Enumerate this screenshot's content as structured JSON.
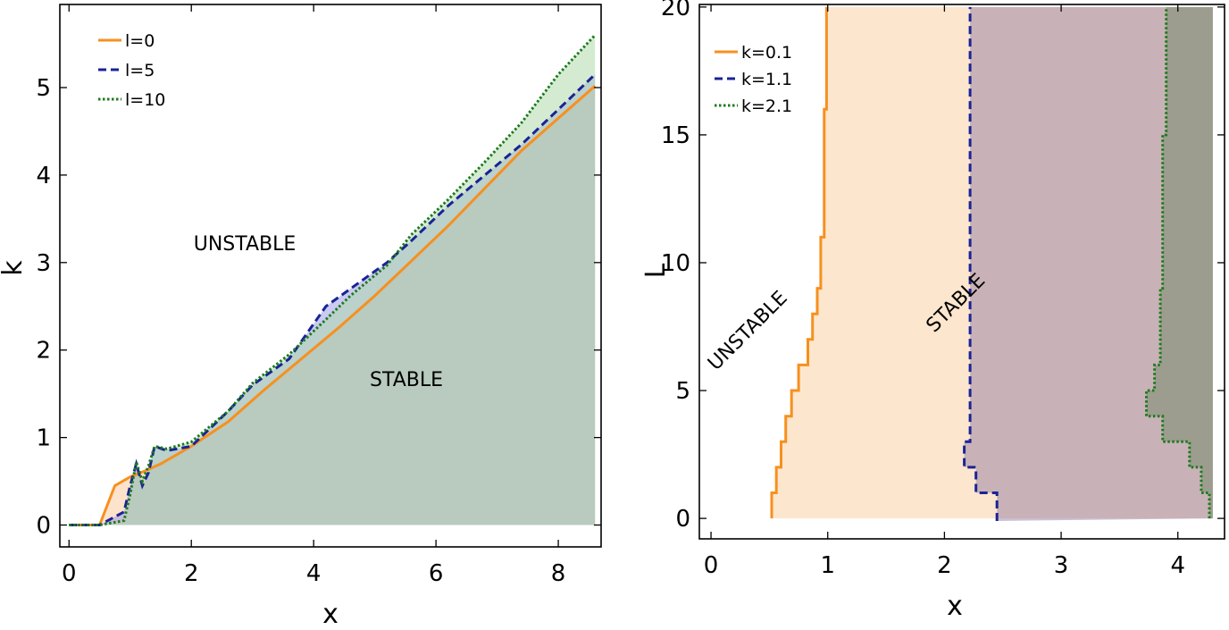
{
  "chart_data": [
    {
      "type": "area",
      "xlabel": "x",
      "ylabel": "k",
      "xlim": [
        -0.15,
        8.7
      ],
      "ylim": [
        -0.25,
        5.95
      ],
      "xticks": [
        0,
        2,
        4,
        6,
        8
      ],
      "yticks": [
        0,
        1,
        2,
        3,
        4,
        5
      ],
      "legend_position": "top-left",
      "grid": false,
      "annotations": [
        "UNSTABLE",
        "STABLE"
      ],
      "series": [
        {
          "name": "l=0",
          "color": "#f7901e",
          "fill": "rgba(252,204,160,0.55)",
          "dash": "solid",
          "x": [
            0,
            0.5,
            0.75,
            1.0,
            1.25,
            1.5,
            2.0,
            2.6,
            3.2,
            3.8,
            4.4,
            5.0,
            5.6,
            6.2,
            6.8,
            7.4,
            8.0,
            8.6
          ],
          "y": [
            0,
            0,
            0.45,
            0.55,
            0.62,
            0.7,
            0.9,
            1.18,
            1.55,
            1.9,
            2.25,
            2.62,
            3.02,
            3.42,
            3.85,
            4.28,
            4.65,
            5.02
          ]
        },
        {
          "name": "l=5",
          "color": "#1a2396",
          "fill": "rgba(150,150,230,0.5)",
          "dash": "dash",
          "x": [
            0,
            0.5,
            0.9,
            1.0,
            1.1,
            1.2,
            1.3,
            1.4,
            1.6,
            2.0,
            2.6,
            3.0,
            3.6,
            4.2,
            4.6,
            5.2,
            5.6,
            6.2,
            6.8,
            7.4,
            8.0,
            8.6
          ],
          "y": [
            0,
            0,
            0.15,
            0.45,
            0.7,
            0.45,
            0.6,
            0.9,
            0.85,
            0.9,
            1.3,
            1.6,
            1.9,
            2.5,
            2.7,
            3.0,
            3.25,
            3.65,
            4.0,
            4.35,
            4.75,
            5.15
          ]
        },
        {
          "name": "l=10",
          "color": "#1c7a1c",
          "fill": "rgba(170,215,165,0.5)",
          "dash": "dot",
          "x": [
            0,
            0.5,
            0.9,
            1.0,
            1.1,
            1.2,
            1.3,
            1.4,
            1.6,
            2.0,
            2.6,
            3.0,
            3.6,
            4.2,
            4.6,
            5.2,
            5.6,
            6.2,
            6.8,
            7.4,
            8.0,
            8.6
          ],
          "y": [
            0,
            0,
            0.05,
            0.35,
            0.72,
            0.5,
            0.68,
            0.9,
            0.87,
            0.95,
            1.3,
            1.62,
            1.95,
            2.35,
            2.62,
            2.97,
            3.32,
            3.72,
            4.15,
            4.6,
            5.15,
            5.6
          ]
        }
      ]
    },
    {
      "type": "area",
      "xlabel": "x",
      "ylabel": "L",
      "xlim": [
        -0.1,
        4.4
      ],
      "ylim": [
        -0.8,
        20.1
      ],
      "xticks": [
        0,
        1,
        2,
        3,
        4
      ],
      "yticks": [
        0,
        5,
        10,
        15,
        20
      ],
      "legend_position": "top-left",
      "grid": false,
      "annotations": [
        "UNSTABLE",
        "STABLE"
      ],
      "series": [
        {
          "name": "k=0.1",
          "color": "#f7901e",
          "fill": "rgba(252,210,165,0.55)",
          "dash": "solid",
          "steps": [
            [
              0.52,
              0
            ],
            [
              0.52,
              1
            ],
            [
              0.56,
              1
            ],
            [
              0.56,
              2
            ],
            [
              0.6,
              2
            ],
            [
              0.6,
              3
            ],
            [
              0.64,
              3
            ],
            [
              0.64,
              4
            ],
            [
              0.69,
              4
            ],
            [
              0.69,
              5
            ],
            [
              0.75,
              5
            ],
            [
              0.75,
              6
            ],
            [
              0.83,
              6
            ],
            [
              0.83,
              7
            ],
            [
              0.87,
              7
            ],
            [
              0.87,
              8
            ],
            [
              0.91,
              8
            ],
            [
              0.91,
              9
            ],
            [
              0.94,
              9
            ],
            [
              0.94,
              11
            ],
            [
              0.97,
              11
            ],
            [
              0.97,
              16
            ],
            [
              0.99,
              16
            ],
            [
              0.99,
              20
            ]
          ]
        },
        {
          "name": "k=1.1",
          "color": "#1a2396",
          "fill": "rgba(120,100,150,0.4)",
          "dash": "dash",
          "steps": [
            [
              2.45,
              -0.1
            ],
            [
              2.45,
              1
            ],
            [
              2.27,
              1
            ],
            [
              2.27,
              2
            ],
            [
              2.17,
              2
            ],
            [
              2.17,
              3
            ],
            [
              2.22,
              3
            ],
            [
              2.22,
              20
            ]
          ]
        },
        {
          "name": "k=2.1",
          "color": "#1c7a1c",
          "fill": "rgba(120,140,110,0.55)",
          "dash": "dot",
          "steps": [
            [
              4.27,
              0
            ],
            [
              4.27,
              1
            ],
            [
              4.2,
              1
            ],
            [
              4.2,
              2
            ],
            [
              4.1,
              2
            ],
            [
              4.1,
              3
            ],
            [
              3.87,
              3
            ],
            [
              3.87,
              4
            ],
            [
              3.73,
              4
            ],
            [
              3.73,
              5
            ],
            [
              3.8,
              5
            ],
            [
              3.8,
              6
            ],
            [
              3.85,
              6
            ],
            [
              3.85,
              9
            ],
            [
              3.87,
              9
            ],
            [
              3.87,
              15
            ],
            [
              3.9,
              15
            ],
            [
              3.9,
              20
            ]
          ]
        }
      ]
    }
  ]
}
